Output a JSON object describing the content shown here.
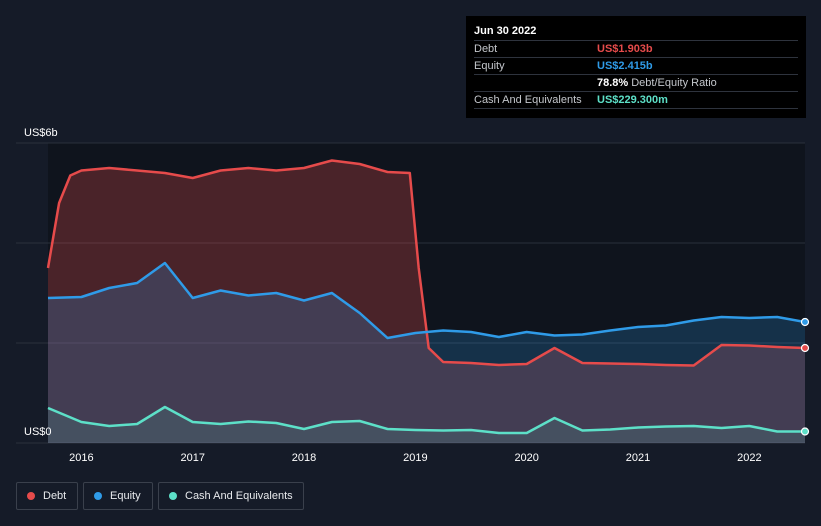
{
  "tooltip": {
    "date": "Jun 30 2022",
    "debt_label": "Debt",
    "debt_value": "US$1.903b",
    "equity_label": "Equity",
    "equity_value": "US$2.415b",
    "ratio_value": "78.8%",
    "ratio_label": "Debt/Equity Ratio",
    "cash_label": "Cash And Equivalents",
    "cash_value": "US$229.300m"
  },
  "legend": {
    "debt": "Debt",
    "equity": "Equity",
    "cash": "Cash And Equivalents"
  },
  "colors": {
    "debt": "#e64b4b",
    "equity": "#2f9be8",
    "cash": "#5de0c8"
  },
  "chart_data": {
    "type": "area",
    "title": "",
    "xlabel": "",
    "ylabel": "",
    "y_top_label": "US$6b",
    "y_bottom_label": "US$0",
    "ylim": [
      0,
      6
    ],
    "xlim": [
      2015.7,
      2022.5
    ],
    "x_ticks": [
      {
        "x": 2016,
        "label": "2016"
      },
      {
        "x": 2017,
        "label": "2017"
      },
      {
        "x": 2018,
        "label": "2018"
      },
      {
        "x": 2019,
        "label": "2019"
      },
      {
        "x": 2020,
        "label": "2020"
      },
      {
        "x": 2021,
        "label": "2021"
      },
      {
        "x": 2022,
        "label": "2022"
      }
    ],
    "series": [
      {
        "name": "Debt",
        "points": [
          [
            2015.7,
            3.5
          ],
          [
            2015.8,
            4.8
          ],
          [
            2015.9,
            5.35
          ],
          [
            2016.0,
            5.45
          ],
          [
            2016.25,
            5.5
          ],
          [
            2016.5,
            5.45
          ],
          [
            2016.75,
            5.4
          ],
          [
            2017.0,
            5.3
          ],
          [
            2017.25,
            5.45
          ],
          [
            2017.5,
            5.5
          ],
          [
            2017.75,
            5.45
          ],
          [
            2018.0,
            5.5
          ],
          [
            2018.25,
            5.65
          ],
          [
            2018.5,
            5.58
          ],
          [
            2018.75,
            5.42
          ],
          [
            2018.95,
            5.4
          ],
          [
            2019.03,
            3.5
          ],
          [
            2019.12,
            1.9
          ],
          [
            2019.25,
            1.62
          ],
          [
            2019.5,
            1.6
          ],
          [
            2019.75,
            1.56
          ],
          [
            2020.0,
            1.58
          ],
          [
            2020.25,
            1.9
          ],
          [
            2020.5,
            1.6
          ],
          [
            2020.75,
            1.59
          ],
          [
            2021.0,
            1.58
          ],
          [
            2021.25,
            1.56
          ],
          [
            2021.5,
            1.55
          ],
          [
            2021.75,
            1.96
          ],
          [
            2022.0,
            1.95
          ],
          [
            2022.25,
            1.92
          ],
          [
            2022.5,
            1.9
          ]
        ]
      },
      {
        "name": "Equity",
        "points": [
          [
            2015.7,
            2.9
          ],
          [
            2016.0,
            2.92
          ],
          [
            2016.25,
            3.1
          ],
          [
            2016.5,
            3.2
          ],
          [
            2016.75,
            3.6
          ],
          [
            2017.0,
            2.9
          ],
          [
            2017.25,
            3.05
          ],
          [
            2017.5,
            2.95
          ],
          [
            2017.75,
            3.0
          ],
          [
            2018.0,
            2.85
          ],
          [
            2018.25,
            3.0
          ],
          [
            2018.5,
            2.6
          ],
          [
            2018.75,
            2.1
          ],
          [
            2019.0,
            2.2
          ],
          [
            2019.25,
            2.25
          ],
          [
            2019.5,
            2.22
          ],
          [
            2019.75,
            2.12
          ],
          [
            2020.0,
            2.22
          ],
          [
            2020.25,
            2.15
          ],
          [
            2020.5,
            2.17
          ],
          [
            2020.75,
            2.25
          ],
          [
            2021.0,
            2.32
          ],
          [
            2021.25,
            2.35
          ],
          [
            2021.5,
            2.45
          ],
          [
            2021.75,
            2.52
          ],
          [
            2022.0,
            2.5
          ],
          [
            2022.25,
            2.52
          ],
          [
            2022.5,
            2.42
          ]
        ]
      },
      {
        "name": "Cash And Equivalents",
        "points": [
          [
            2015.7,
            0.7
          ],
          [
            2016.0,
            0.42
          ],
          [
            2016.25,
            0.34
          ],
          [
            2016.5,
            0.38
          ],
          [
            2016.75,
            0.72
          ],
          [
            2017.0,
            0.42
          ],
          [
            2017.25,
            0.38
          ],
          [
            2017.5,
            0.43
          ],
          [
            2017.75,
            0.4
          ],
          [
            2018.0,
            0.28
          ],
          [
            2018.25,
            0.42
          ],
          [
            2018.5,
            0.44
          ],
          [
            2018.75,
            0.28
          ],
          [
            2019.0,
            0.26
          ],
          [
            2019.25,
            0.25
          ],
          [
            2019.5,
            0.26
          ],
          [
            2019.75,
            0.2
          ],
          [
            2020.0,
            0.2
          ],
          [
            2020.25,
            0.5
          ],
          [
            2020.5,
            0.25
          ],
          [
            2020.75,
            0.27
          ],
          [
            2021.0,
            0.31
          ],
          [
            2021.25,
            0.33
          ],
          [
            2021.5,
            0.34
          ],
          [
            2021.75,
            0.3
          ],
          [
            2022.0,
            0.34
          ],
          [
            2022.25,
            0.23
          ],
          [
            2022.5,
            0.23
          ]
        ]
      }
    ]
  }
}
